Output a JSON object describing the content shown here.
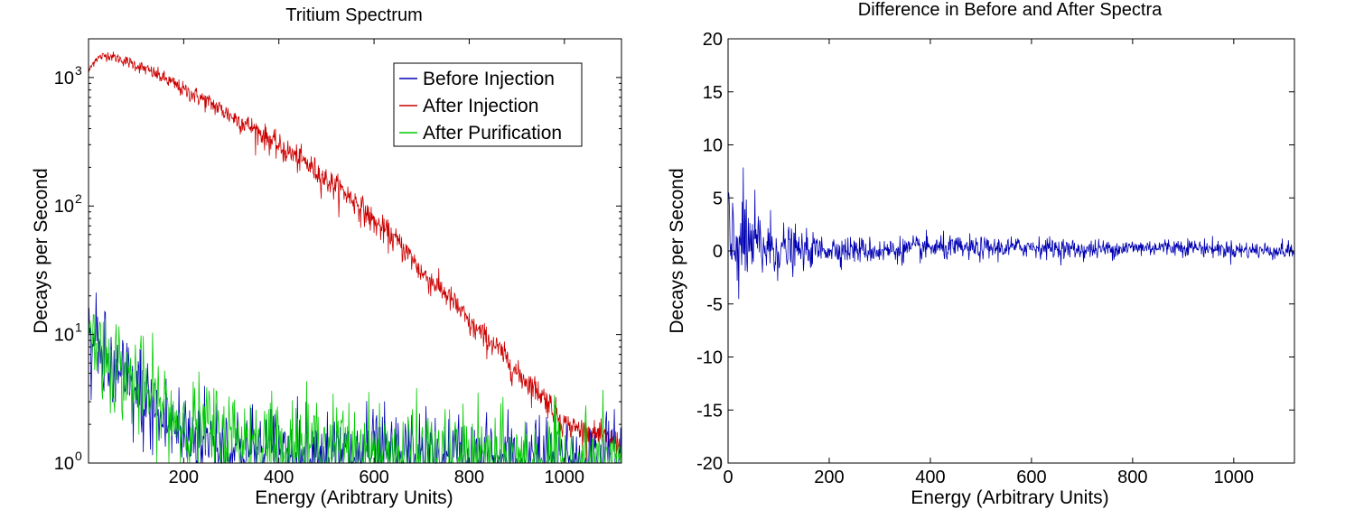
{
  "chart_data": [
    {
      "type": "line",
      "title": "Tritium Spectrum",
      "xlabel": "Energy (Aribtrary Units)",
      "ylabel": "Decays per Second",
      "xlim": [
        0,
        1120
      ],
      "ylim": [
        1,
        2000
      ],
      "yscale": "log",
      "xticks": [
        200,
        400,
        600,
        800,
        1000
      ],
      "yticks": [
        {
          "base": "10",
          "exp": "0"
        },
        {
          "base": "10",
          "exp": "1"
        },
        {
          "base": "10",
          "exp": "2"
        },
        {
          "base": "10",
          "exp": "3"
        }
      ],
      "legend_position": "top-right",
      "grid": false,
      "series": [
        {
          "name": "Before Injection",
          "color": "#0000b3",
          "x": [
            0,
            20,
            50,
            100,
            150,
            200,
            300,
            400,
            500,
            600,
            700,
            800,
            900,
            1000,
            1120
          ],
          "y": [
            9,
            7,
            5,
            3.5,
            2.2,
            1.7,
            1.3,
            1.15,
            1.1,
            1.05,
            1.02,
            1.0,
            1.0,
            1.0,
            1.0
          ]
        },
        {
          "name": "After Injection",
          "color": "#cc0000",
          "x": [
            0,
            15,
            40,
            100,
            200,
            300,
            400,
            500,
            600,
            700,
            800,
            900,
            1000,
            1120
          ],
          "y": [
            1100,
            1400,
            1500,
            1250,
            800,
            500,
            290,
            160,
            75,
            30,
            12,
            5,
            2,
            1.4
          ]
        },
        {
          "name": "After Purification",
          "color": "#00cc00",
          "x": [
            0,
            20,
            50,
            100,
            150,
            200,
            300,
            400,
            500,
            600,
            700,
            800,
            900,
            1000,
            1120
          ],
          "y": [
            10,
            8,
            6,
            4,
            2.8,
            2,
            1.6,
            1.4,
            1.3,
            1.2,
            1.1,
            1.05,
            1.0,
            1.0,
            1.0
          ]
        }
      ]
    },
    {
      "type": "line",
      "title": "Difference in Before and After Spectra",
      "xlabel": "Energy (Arbitrary Units)",
      "ylabel": "Decays per Second",
      "xlim": [
        0,
        1120
      ],
      "ylim": [
        -20,
        20
      ],
      "xticks": [
        0,
        200,
        400,
        600,
        800,
        1000
      ],
      "yticks": [
        -20,
        -15,
        -10,
        -5,
        0,
        5,
        10,
        15,
        20
      ],
      "grid": false,
      "series": [
        {
          "color": "#0000b3",
          "x": [
            0,
            10,
            50,
            100,
            150,
            200,
            300,
            400,
            500,
            600,
            700,
            800,
            900,
            1000,
            1120
          ],
          "y": [
            0,
            1,
            0.5,
            0.2,
            0,
            0.2,
            0,
            0.3,
            0.2,
            0.4,
            0.1,
            0.3,
            0.4,
            0.1,
            0
          ],
          "noise_amplitude": [
            5,
            4.5,
            3.5,
            2.2,
            1.4,
            1.1,
            1.0,
            1.0,
            0.9,
            0.8,
            0.8,
            0.7,
            0.7,
            0.7,
            0.7
          ]
        }
      ]
    }
  ]
}
